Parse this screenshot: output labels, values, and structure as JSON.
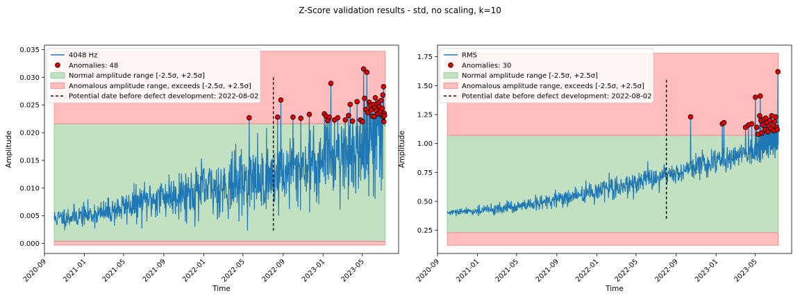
{
  "figure": {
    "suptitle": "Z-Score validation results - std, no scaling, k=10",
    "colors": {
      "signal": "#1f77b4",
      "normal_fill": "#c2e0c2",
      "normal_edge": "#8fc98f",
      "anomalous_fill": "#ffbdbd",
      "anomalous_edge": "#e88a8a",
      "anomaly_point": "#e00000",
      "threshold_line": "#000000"
    }
  },
  "chart_data": [
    {
      "type": "line",
      "xlabel": "Time",
      "ylabel": "Amplitude",
      "x_range": [
        "2020-09-01",
        "2023-08-20"
      ],
      "x_ticks": [
        "2020-09",
        "2021-01",
        "2021-05",
        "2021-09",
        "2022-01",
        "2022-05",
        "2022-09",
        "2023-01",
        "2023-05"
      ],
      "ylim": [
        -0.0018,
        0.0358
      ],
      "y_ticks": [
        0.0,
        0.005,
        0.01,
        0.015,
        0.02,
        0.025,
        0.03,
        0.035
      ],
      "y_tick_labels": [
        "0.000",
        "0.005",
        "0.010",
        "0.015",
        "0.020",
        "0.025",
        "0.030",
        "0.035"
      ],
      "series_x_range": [
        "2020-10-01",
        "2023-07-10"
      ],
      "signal_label": "4048 Hz",
      "trend": [
        {
          "date": "2020-10-01",
          "mean": 0.0045,
          "noise": 0.0009
        },
        {
          "date": "2021-03-01",
          "mean": 0.0055,
          "noise": 0.0011
        },
        {
          "date": "2021-09-01",
          "mean": 0.0085,
          "noise": 0.002
        },
        {
          "date": "2022-02-01",
          "mean": 0.01,
          "noise": 0.0026
        },
        {
          "date": "2022-08-01",
          "mean": 0.012,
          "noise": 0.0032
        },
        {
          "date": "2023-01-01",
          "mean": 0.015,
          "noise": 0.0035
        },
        {
          "date": "2023-07-10",
          "mean": 0.0175,
          "noise": 0.004
        }
      ],
      "normal_band": [
        0.0004,
        0.0216
      ],
      "anomalous_band": [
        -0.0003,
        0.0347
      ],
      "defect_date": "2022-08-02",
      "defect_line_range": [
        0.0022,
        0.03
      ],
      "anomaly_count": 48,
      "anomalies": [
        {
          "date": "2022-05-20",
          "value": 0.0227
        },
        {
          "date": "2022-08-15",
          "value": 0.0228
        },
        {
          "date": "2022-08-25",
          "value": 0.0259
        },
        {
          "date": "2022-10-01",
          "value": 0.0228
        },
        {
          "date": "2022-10-25",
          "value": 0.0226
        },
        {
          "date": "2022-11-20",
          "value": 0.0233
        },
        {
          "date": "2023-01-05",
          "value": 0.0234
        },
        {
          "date": "2023-01-10",
          "value": 0.023
        },
        {
          "date": "2023-01-15",
          "value": 0.0222
        },
        {
          "date": "2023-01-20",
          "value": 0.0228
        },
        {
          "date": "2023-01-25",
          "value": 0.0289
        },
        {
          "date": "2023-02-05",
          "value": 0.0223
        },
        {
          "date": "2023-02-15",
          "value": 0.0227
        },
        {
          "date": "2023-03-10",
          "value": 0.0223
        },
        {
          "date": "2023-03-20",
          "value": 0.0231
        },
        {
          "date": "2023-03-25",
          "value": 0.0251
        },
        {
          "date": "2023-04-01",
          "value": 0.0221
        },
        {
          "date": "2023-04-15",
          "value": 0.0256
        },
        {
          "date": "2023-04-25",
          "value": 0.0223
        },
        {
          "date": "2023-05-01",
          "value": 0.022
        },
        {
          "date": "2023-05-05",
          "value": 0.0315
        },
        {
          "date": "2023-05-08",
          "value": 0.0262
        },
        {
          "date": "2023-05-12",
          "value": 0.0242
        },
        {
          "date": "2023-05-15",
          "value": 0.0309
        },
        {
          "date": "2023-05-18",
          "value": 0.0236
        },
        {
          "date": "2023-05-22",
          "value": 0.0255
        },
        {
          "date": "2023-05-25",
          "value": 0.0249
        },
        {
          "date": "2023-05-28",
          "value": 0.0241
        },
        {
          "date": "2023-06-01",
          "value": 0.023
        },
        {
          "date": "2023-06-03",
          "value": 0.0251
        },
        {
          "date": "2023-06-06",
          "value": 0.0229
        },
        {
          "date": "2023-06-08",
          "value": 0.0245
        },
        {
          "date": "2023-06-10",
          "value": 0.0263
        },
        {
          "date": "2023-06-13",
          "value": 0.024
        },
        {
          "date": "2023-06-15",
          "value": 0.0252
        },
        {
          "date": "2023-06-18",
          "value": 0.0234
        },
        {
          "date": "2023-06-20",
          "value": 0.0255
        },
        {
          "date": "2023-06-22",
          "value": 0.0247
        },
        {
          "date": "2023-06-25",
          "value": 0.0238
        },
        {
          "date": "2023-06-27",
          "value": 0.0258
        },
        {
          "date": "2023-06-29",
          "value": 0.0232
        },
        {
          "date": "2023-07-01",
          "value": 0.0244
        },
        {
          "date": "2023-07-03",
          "value": 0.0268
        },
        {
          "date": "2023-07-04",
          "value": 0.0229
        },
        {
          "date": "2023-07-05",
          "value": 0.0283
        },
        {
          "date": "2023-07-06",
          "value": 0.022
        },
        {
          "date": "2023-07-07",
          "value": 0.0235
        },
        {
          "date": "2023-07-08",
          "value": 0.0231
        }
      ],
      "legend": {
        "position": "top-left",
        "entries": [
          {
            "kind": "line",
            "label": "4048 Hz"
          },
          {
            "kind": "marker",
            "label": "Anomalies: 48"
          },
          {
            "kind": "normal",
            "label": "Normal amplitude range [-2.5σ, +2.5σ]"
          },
          {
            "kind": "anomalous",
            "label": "Anomalous amplitude range, exceeds [-2.5σ, +2.5σ]"
          },
          {
            "kind": "dashed",
            "label": "Potential date before defect development: 2022-08-02"
          }
        ]
      },
      "seed": 11
    },
    {
      "type": "line",
      "xlabel": "Time",
      "ylabel": "Amplitude",
      "x_range": [
        "2020-09-01",
        "2023-08-20"
      ],
      "x_ticks": [
        "2020-09",
        "2021-01",
        "2021-05",
        "2021-09",
        "2022-01",
        "2022-05",
        "2022-09",
        "2023-01",
        "2023-05"
      ],
      "ylim": [
        0.05,
        1.85
      ],
      "y_ticks": [
        0.25,
        0.5,
        0.75,
        1.0,
        1.25,
        1.5,
        1.75
      ],
      "y_tick_labels": [
        "0.25",
        "0.50",
        "0.75",
        "1.00",
        "1.25",
        "1.50",
        "1.75"
      ],
      "series_x_range": [
        "2020-10-01",
        "2023-07-10"
      ],
      "signal_label": "RMS",
      "trend": [
        {
          "date": "2020-10-01",
          "mean": 0.4,
          "noise": 0.012
        },
        {
          "date": "2021-01-01",
          "mean": 0.42,
          "noise": 0.018
        },
        {
          "date": "2021-06-01",
          "mean": 0.46,
          "noise": 0.03
        },
        {
          "date": "2021-11-01",
          "mean": 0.55,
          "noise": 0.04
        },
        {
          "date": "2022-03-01",
          "mean": 0.62,
          "noise": 0.045
        },
        {
          "date": "2022-08-01",
          "mean": 0.72,
          "noise": 0.05
        },
        {
          "date": "2023-01-01",
          "mean": 0.85,
          "noise": 0.055
        },
        {
          "date": "2023-07-10",
          "mean": 0.98,
          "noise": 0.065
        }
      ],
      "normal_band": [
        0.23,
        1.07
      ],
      "anomalous_band": [
        0.12,
        1.78
      ],
      "defect_date": "2022-08-02",
      "defect_line_range": [
        0.35,
        1.55
      ],
      "anomaly_count": 30,
      "anomalies": [
        {
          "date": "2022-10-15",
          "value": 1.23
        },
        {
          "date": "2023-01-20",
          "value": 1.17
        },
        {
          "date": "2023-01-25",
          "value": 1.18
        },
        {
          "date": "2023-04-01",
          "value": 1.14
        },
        {
          "date": "2023-04-10",
          "value": 1.16
        },
        {
          "date": "2023-04-20",
          "value": 1.17
        },
        {
          "date": "2023-05-01",
          "value": 1.4
        },
        {
          "date": "2023-05-05",
          "value": 1.14
        },
        {
          "date": "2023-05-10",
          "value": 1.08
        },
        {
          "date": "2023-05-14",
          "value": 1.24
        },
        {
          "date": "2023-05-16",
          "value": 1.41
        },
        {
          "date": "2023-05-18",
          "value": 1.2
        },
        {
          "date": "2023-05-21",
          "value": 1.09
        },
        {
          "date": "2023-05-24",
          "value": 1.16
        },
        {
          "date": "2023-05-27",
          "value": 1.21
        },
        {
          "date": "2023-05-30",
          "value": 1.12
        },
        {
          "date": "2023-06-02",
          "value": 1.22
        },
        {
          "date": "2023-06-05",
          "value": 1.18
        },
        {
          "date": "2023-06-08",
          "value": 1.1
        },
        {
          "date": "2023-06-11",
          "value": 1.15
        },
        {
          "date": "2023-06-14",
          "value": 1.2
        },
        {
          "date": "2023-06-17",
          "value": 1.13
        },
        {
          "date": "2023-06-20",
          "value": 1.24
        },
        {
          "date": "2023-06-23",
          "value": 1.16
        },
        {
          "date": "2023-06-26",
          "value": 1.11
        },
        {
          "date": "2023-06-29",
          "value": 1.19
        },
        {
          "date": "2023-07-02",
          "value": 1.23
        },
        {
          "date": "2023-07-05",
          "value": 1.14
        },
        {
          "date": "2023-07-07",
          "value": 1.12
        },
        {
          "date": "2023-07-09",
          "value": 1.62
        }
      ],
      "legend": {
        "position": "top-left",
        "entries": [
          {
            "kind": "line",
            "label": "RMS"
          },
          {
            "kind": "marker",
            "label": "Anomalies: 30"
          },
          {
            "kind": "normal",
            "label": "Normal amplitude range [-2.5σ, +2.5σ]"
          },
          {
            "kind": "anomalous",
            "label": "Anomalous amplitude range, exceeds [-2.5σ, +2.5σ]"
          },
          {
            "kind": "dashed",
            "label": "Potential date before defect development: 2022-08-02"
          }
        ]
      },
      "seed": 29
    }
  ]
}
